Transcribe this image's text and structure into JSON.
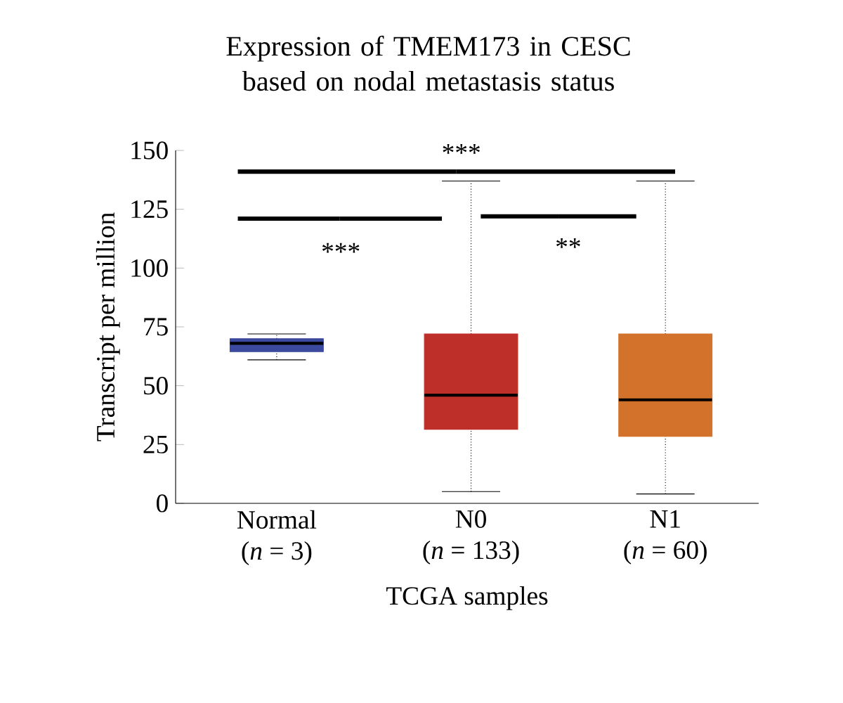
{
  "chart_data": {
    "type": "box",
    "title": "Expression of TMEM173 in CESC based on nodal metastasis status",
    "xlabel": "TCGA samples",
    "ylabel": "Transcript per million",
    "categories": [
      "Normal\n(*n* = 3)",
      "N0\n(*n* = 133)",
      "N1\n(*n* = 60)"
    ],
    "colors": [
      "#3b4a9e",
      "#bf2f29",
      "#d3732b"
    ],
    "boxes": [
      {
        "low": 61,
        "q1": 64.5,
        "median": 68,
        "q3": 70,
        "high": 72
      },
      {
        "low": 5,
        "q1": 31.5,
        "median": 46,
        "q3": 72,
        "high": 137
      },
      {
        "low": 4,
        "q1": 28.5,
        "median": 44,
        "q3": 72,
        "high": 137
      }
    ],
    "ylim": [
      0,
      150
    ],
    "yticks": [
      0,
      25,
      50,
      75,
      100,
      125,
      150
    ],
    "annotations": [
      "***",
      "**",
      "***"
    ],
    "grid": false
  }
}
